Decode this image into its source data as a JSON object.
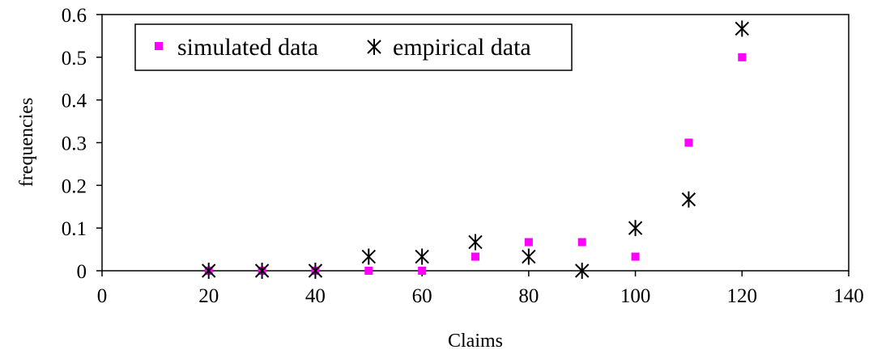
{
  "chart_data": {
    "type": "scatter",
    "title": "",
    "xlabel": "Claims",
    "ylabel": "frequencies",
    "xlim": [
      0,
      140
    ],
    "ylim": [
      0,
      0.6
    ],
    "x_ticks": [
      "0",
      "20",
      "40",
      "60",
      "80",
      "100",
      "120",
      "140"
    ],
    "y_ticks": [
      "0",
      "0.1",
      "0.2",
      "0.3",
      "0.4",
      "0.5",
      "0.6"
    ],
    "x_tick_values": [
      0,
      20,
      40,
      60,
      80,
      100,
      120,
      140
    ],
    "y_tick_values": [
      0,
      0.1,
      0.2,
      0.3,
      0.4,
      0.5,
      0.6
    ],
    "grid": false,
    "legend_position": "top-left",
    "series": [
      {
        "name": "simulated data",
        "marker": "square",
        "color": "#ff00ff",
        "x": [
          20,
          30,
          40,
          50,
          60,
          70,
          80,
          90,
          100,
          110,
          120
        ],
        "y": [
          0,
          0,
          0,
          0,
          0,
          0.033,
          0.067,
          0.067,
          0.033,
          0.3,
          0.5
        ]
      },
      {
        "name": "empirical data",
        "marker": "asterisk",
        "color": "#000000",
        "x": [
          20,
          30,
          40,
          50,
          60,
          70,
          80,
          90,
          100,
          110,
          120
        ],
        "y": [
          0,
          0,
          0,
          0.033,
          0.033,
          0.067,
          0.033,
          0,
          0.1,
          0.167,
          0.567
        ]
      }
    ]
  }
}
